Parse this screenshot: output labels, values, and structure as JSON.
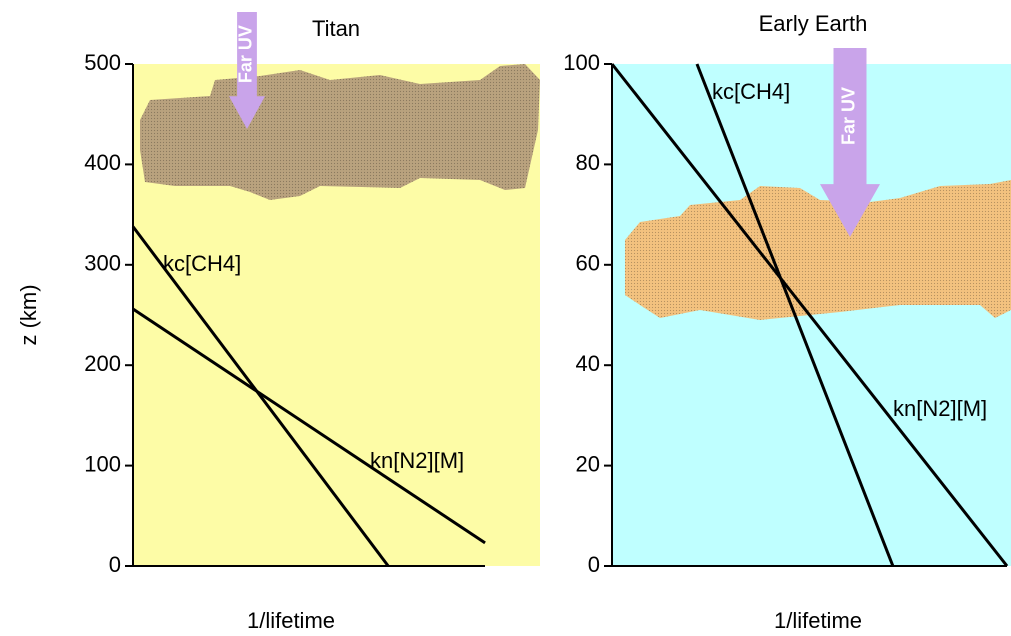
{
  "chart_data": [
    {
      "type": "line",
      "title": "Titan",
      "xlabel": "1/lifetime",
      "ylabel": "z (km)",
      "annotation": "Far UV",
      "background": "#fdfca6",
      "cloud_color": "#b9a27e",
      "xlim": [
        0,
        1
      ],
      "ylim": [
        0,
        500
      ],
      "yticks": [
        0,
        100,
        200,
        300,
        400,
        500
      ],
      "series": [
        {
          "name": "kc[CH4]",
          "color": "#000000",
          "x": [
            0,
            0.627
          ],
          "values": [
            338,
            0
          ]
        },
        {
          "name": "kn[N2][M]",
          "color": "#000000",
          "x": [
            0,
            0.865
          ],
          "values": [
            256,
            23
          ]
        }
      ]
    },
    {
      "type": "line",
      "title": "Early Earth",
      "xlabel": "1/lifetime",
      "annotation": "Far UV",
      "background": "#bfffff",
      "cloud_color": "#f3c27f",
      "xlim": [
        0,
        1
      ],
      "ylim": [
        0,
        100
      ],
      "yticks": [
        0,
        20,
        40,
        60,
        80,
        100
      ],
      "series": [
        {
          "name": "kc[CH4]",
          "color": "#000000",
          "x": [
            0.213,
            0.704
          ],
          "values": [
            100,
            0
          ]
        },
        {
          "name": "kn[N2][M]",
          "color": "#000000",
          "x": [
            0,
            0.99
          ],
          "values": [
            100,
            0
          ]
        }
      ]
    }
  ]
}
